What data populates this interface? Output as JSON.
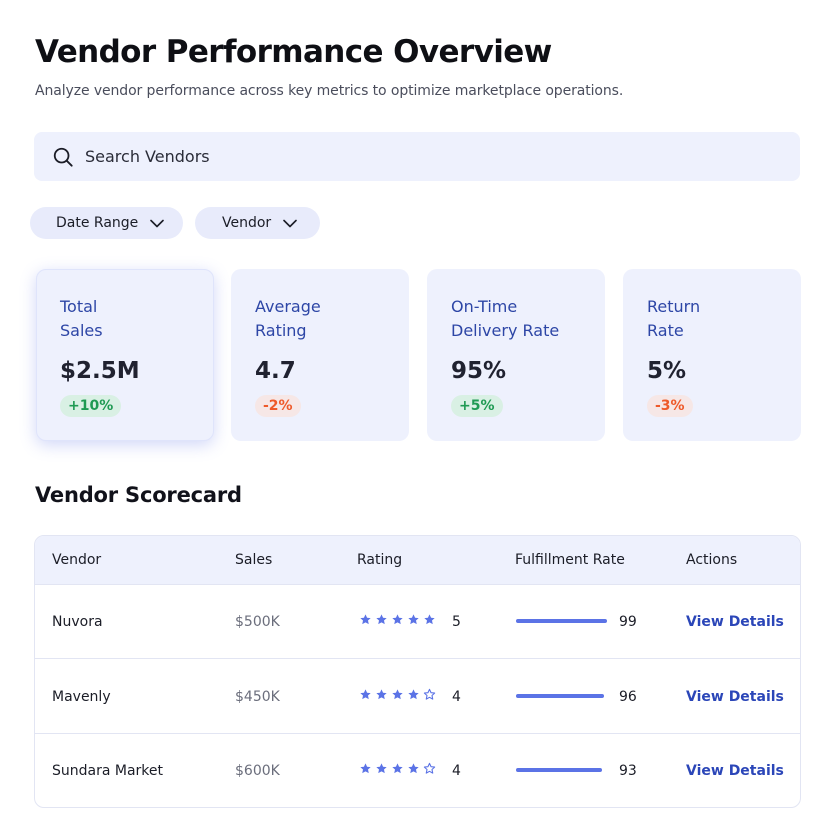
{
  "header": {
    "title": "Vendor Performance Overview",
    "subtitle": "Analyze vendor performance across key metrics to optimize marketplace operations."
  },
  "search": {
    "placeholder": "Search Vendors",
    "icon": "search-icon"
  },
  "filters": [
    {
      "label": "Date Range",
      "icon": "chevron-down-icon"
    },
    {
      "label": "Vendor",
      "icon": "chevron-down-icon"
    }
  ],
  "kpis": [
    {
      "label_line1": "Total",
      "label_line2": "Sales",
      "value": "$2.5M",
      "change": "+10%",
      "trend": "up"
    },
    {
      "label_line1": "Average",
      "label_line2": "Rating",
      "value": "4.7",
      "change": "-2%",
      "trend": "down"
    },
    {
      "label_line1": "On-Time",
      "label_line2": "Delivery Rate",
      "value": "95%",
      "change": "+5%",
      "trend": "up"
    },
    {
      "label_line1": "Return",
      "label_line2": "Rate",
      "value": "5%",
      "change": "-3%",
      "trend": "down"
    }
  ],
  "scorecard": {
    "title": "Vendor Scorecard",
    "columns": [
      "Vendor",
      "Sales",
      "Rating",
      "Fulfillment Rate",
      "Actions"
    ],
    "rows": [
      {
        "vendor": "Nuvora",
        "sales": "$500K",
        "stars": 5,
        "rating": "5",
        "fulfillment": "99",
        "action": "View Details"
      },
      {
        "vendor": "Mavenly",
        "sales": "$450K",
        "stars": 4,
        "rating": "4",
        "fulfillment": "96",
        "action": "View Details"
      },
      {
        "vendor": "Sundara Market",
        "sales": "$600K",
        "stars": 4,
        "rating": "4",
        "fulfillment": "93",
        "action": "View Details"
      }
    ]
  },
  "colors": {
    "accent": "#5b73e6",
    "link": "#2b46b8",
    "positive": "#1f9a53",
    "negative": "#ee5a2a",
    "card_bg": "#eef1fd"
  }
}
